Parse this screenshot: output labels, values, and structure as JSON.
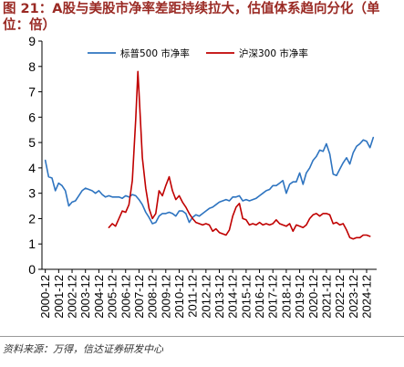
{
  "figure": {
    "source": "资料来源：万得，信达证券研发中心"
  },
  "chart_data": {
    "type": "line",
    "title": "图 21：A股与美股市净率差距持续拉大，估值体系趋向分化（单位：倍）",
    "xlabel": "",
    "ylabel": "",
    "xlim": [
      "2000-09",
      "2025-09"
    ],
    "ylim": [
      0,
      9
    ],
    "yticks": [
      0,
      1,
      2,
      3,
      4,
      5,
      6,
      7,
      8,
      9
    ],
    "xticks": [
      "2000-12",
      "2001-12",
      "2002-12",
      "2003-12",
      "2004-12",
      "2005-12",
      "2006-12",
      "2007-12",
      "2008-12",
      "2009-12",
      "2010-12",
      "2011-12",
      "2012-12",
      "2013-12",
      "2014-12",
      "2015-12",
      "2016-12",
      "2017-12",
      "2018-12",
      "2019-12",
      "2020-12",
      "2021-12",
      "2022-12",
      "2023-12",
      "2024-12"
    ],
    "grid": false,
    "legend": "top",
    "series": [
      {
        "name": "标普500 市净率",
        "color": "#2e74c0",
        "points": [
          [
            "2000-12",
            4.3
          ],
          [
            "2001-03",
            3.65
          ],
          [
            "2001-06",
            3.6
          ],
          [
            "2001-09",
            3.1
          ],
          [
            "2001-12",
            3.4
          ],
          [
            "2002-03",
            3.3
          ],
          [
            "2002-06",
            3.1
          ],
          [
            "2002-09",
            2.5
          ],
          [
            "2002-12",
            2.65
          ],
          [
            "2003-03",
            2.7
          ],
          [
            "2003-06",
            2.9
          ],
          [
            "2003-09",
            3.1
          ],
          [
            "2003-12",
            3.2
          ],
          [
            "2004-03",
            3.15
          ],
          [
            "2004-06",
            3.1
          ],
          [
            "2004-09",
            3.0
          ],
          [
            "2004-12",
            3.1
          ],
          [
            "2005-03",
            2.95
          ],
          [
            "2005-06",
            2.85
          ],
          [
            "2005-09",
            2.9
          ],
          [
            "2005-12",
            2.85
          ],
          [
            "2006-03",
            2.85
          ],
          [
            "2006-06",
            2.85
          ],
          [
            "2006-09",
            2.8
          ],
          [
            "2006-12",
            2.9
          ],
          [
            "2007-03",
            2.85
          ],
          [
            "2007-06",
            2.95
          ],
          [
            "2007-09",
            2.9
          ],
          [
            "2007-12",
            2.75
          ],
          [
            "2008-03",
            2.55
          ],
          [
            "2008-06",
            2.25
          ],
          [
            "2008-09",
            2.05
          ],
          [
            "2008-12",
            1.8
          ],
          [
            "2009-03",
            1.85
          ],
          [
            "2009-06",
            2.1
          ],
          [
            "2009-09",
            2.2
          ],
          [
            "2009-12",
            2.2
          ],
          [
            "2010-03",
            2.25
          ],
          [
            "2010-06",
            2.2
          ],
          [
            "2010-09",
            2.1
          ],
          [
            "2010-12",
            2.3
          ],
          [
            "2011-03",
            2.3
          ],
          [
            "2011-06",
            2.2
          ],
          [
            "2011-09",
            1.85
          ],
          [
            "2011-12",
            2.05
          ],
          [
            "2012-03",
            2.15
          ],
          [
            "2012-06",
            2.1
          ],
          [
            "2012-09",
            2.2
          ],
          [
            "2012-12",
            2.3
          ],
          [
            "2013-03",
            2.4
          ],
          [
            "2013-06",
            2.45
          ],
          [
            "2013-09",
            2.55
          ],
          [
            "2013-12",
            2.65
          ],
          [
            "2014-03",
            2.7
          ],
          [
            "2014-06",
            2.75
          ],
          [
            "2014-09",
            2.7
          ],
          [
            "2014-12",
            2.85
          ],
          [
            "2015-03",
            2.85
          ],
          [
            "2015-06",
            2.9
          ],
          [
            "2015-09",
            2.7
          ],
          [
            "2015-12",
            2.75
          ],
          [
            "2016-03",
            2.7
          ],
          [
            "2016-06",
            2.75
          ],
          [
            "2016-09",
            2.8
          ],
          [
            "2016-12",
            2.9
          ],
          [
            "2017-03",
            3.0
          ],
          [
            "2017-06",
            3.1
          ],
          [
            "2017-09",
            3.15
          ],
          [
            "2017-12",
            3.3
          ],
          [
            "2018-03",
            3.3
          ],
          [
            "2018-06",
            3.4
          ],
          [
            "2018-09",
            3.5
          ],
          [
            "2018-12",
            3.0
          ],
          [
            "2019-03",
            3.35
          ],
          [
            "2019-06",
            3.45
          ],
          [
            "2019-09",
            3.45
          ],
          [
            "2019-12",
            3.8
          ],
          [
            "2020-03",
            3.35
          ],
          [
            "2020-06",
            3.8
          ],
          [
            "2020-09",
            4.0
          ],
          [
            "2020-12",
            4.3
          ],
          [
            "2021-03",
            4.45
          ],
          [
            "2021-06",
            4.7
          ],
          [
            "2021-09",
            4.65
          ],
          [
            "2021-12",
            4.95
          ],
          [
            "2022-03",
            4.55
          ],
          [
            "2022-06",
            3.75
          ],
          [
            "2022-09",
            3.7
          ],
          [
            "2022-12",
            3.95
          ],
          [
            "2023-03",
            4.2
          ],
          [
            "2023-06",
            4.4
          ],
          [
            "2023-09",
            4.15
          ],
          [
            "2023-12",
            4.6
          ],
          [
            "2024-03",
            4.85
          ],
          [
            "2024-06",
            4.95
          ],
          [
            "2024-09",
            5.1
          ],
          [
            "2024-12",
            5.05
          ],
          [
            "2025-03",
            4.8
          ],
          [
            "2025-06",
            5.2
          ]
        ]
      },
      {
        "name": "沪深300 市净率",
        "color": "#c00000",
        "points": [
          [
            "2005-09",
            1.65
          ],
          [
            "2005-12",
            1.8
          ],
          [
            "2006-03",
            1.7
          ],
          [
            "2006-06",
            2.0
          ],
          [
            "2006-09",
            2.3
          ],
          [
            "2006-12",
            2.25
          ],
          [
            "2007-03",
            2.55
          ],
          [
            "2007-06",
            3.5
          ],
          [
            "2007-09",
            5.9
          ],
          [
            "2007-11",
            7.8
          ],
          [
            "2007-12",
            7.0
          ],
          [
            "2008-03",
            4.4
          ],
          [
            "2008-06",
            3.2
          ],
          [
            "2008-09",
            2.4
          ],
          [
            "2008-12",
            2.0
          ],
          [
            "2009-03",
            2.2
          ],
          [
            "2009-06",
            3.1
          ],
          [
            "2009-09",
            2.9
          ],
          [
            "2009-12",
            3.3
          ],
          [
            "2010-03",
            3.65
          ],
          [
            "2010-06",
            3.1
          ],
          [
            "2010-09",
            2.75
          ],
          [
            "2010-12",
            2.9
          ],
          [
            "2011-03",
            2.65
          ],
          [
            "2011-06",
            2.45
          ],
          [
            "2011-09",
            2.2
          ],
          [
            "2011-12",
            2.0
          ],
          [
            "2012-03",
            1.85
          ],
          [
            "2012-06",
            1.8
          ],
          [
            "2012-09",
            1.75
          ],
          [
            "2012-12",
            1.8
          ],
          [
            "2013-03",
            1.75
          ],
          [
            "2013-06",
            1.5
          ],
          [
            "2013-09",
            1.6
          ],
          [
            "2013-12",
            1.45
          ],
          [
            "2014-03",
            1.4
          ],
          [
            "2014-06",
            1.35
          ],
          [
            "2014-09",
            1.55
          ],
          [
            "2014-12",
            2.1
          ],
          [
            "2015-03",
            2.45
          ],
          [
            "2015-06",
            2.6
          ],
          [
            "2015-09",
            2.0
          ],
          [
            "2015-12",
            1.95
          ],
          [
            "2016-03",
            1.75
          ],
          [
            "2016-06",
            1.8
          ],
          [
            "2016-09",
            1.75
          ],
          [
            "2016-12",
            1.85
          ],
          [
            "2017-03",
            1.75
          ],
          [
            "2017-06",
            1.8
          ],
          [
            "2017-09",
            1.75
          ],
          [
            "2017-12",
            1.8
          ],
          [
            "2018-03",
            1.95
          ],
          [
            "2018-06",
            1.8
          ],
          [
            "2018-09",
            1.75
          ],
          [
            "2018-12",
            1.7
          ],
          [
            "2019-03",
            1.8
          ],
          [
            "2019-06",
            1.5
          ],
          [
            "2019-09",
            1.75
          ],
          [
            "2019-12",
            1.7
          ],
          [
            "2020-03",
            1.65
          ],
          [
            "2020-06",
            1.75
          ],
          [
            "2020-09",
            2.0
          ],
          [
            "2020-12",
            2.15
          ],
          [
            "2021-03",
            2.2
          ],
          [
            "2021-06",
            2.1
          ],
          [
            "2021-09",
            2.2
          ],
          [
            "2021-12",
            2.2
          ],
          [
            "2022-03",
            2.15
          ],
          [
            "2022-06",
            1.8
          ],
          [
            "2022-09",
            1.85
          ],
          [
            "2022-12",
            1.75
          ],
          [
            "2023-03",
            1.8
          ],
          [
            "2023-06",
            1.55
          ],
          [
            "2023-09",
            1.25
          ],
          [
            "2023-12",
            1.2
          ],
          [
            "2024-03",
            1.25
          ],
          [
            "2024-06",
            1.25
          ],
          [
            "2024-09",
            1.35
          ],
          [
            "2024-12",
            1.35
          ],
          [
            "2025-03",
            1.3
          ]
        ]
      }
    ]
  }
}
